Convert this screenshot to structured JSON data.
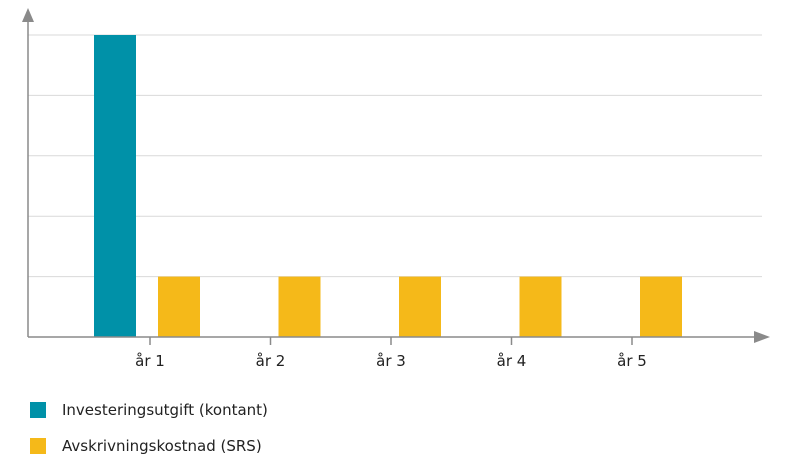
{
  "chart_data": {
    "type": "bar",
    "categories": [
      "år 1",
      "år 2",
      "år 3",
      "år 4",
      "år 5"
    ],
    "series": [
      {
        "name": "Investeringsutgift (kontant)",
        "color": "#0091a8",
        "values": [
          5,
          0,
          0,
          0,
          0
        ]
      },
      {
        "name": "Avskrivningskostnad (SRS)",
        "color": "#f5b919",
        "values": [
          1,
          1,
          1,
          1,
          1
        ]
      }
    ],
    "ylim": [
      0,
      5
    ],
    "grid": true,
    "legend_position": "bottom-left",
    "axis_color": "#8a8a8a",
    "grid_color": "#d9d9d9"
  }
}
